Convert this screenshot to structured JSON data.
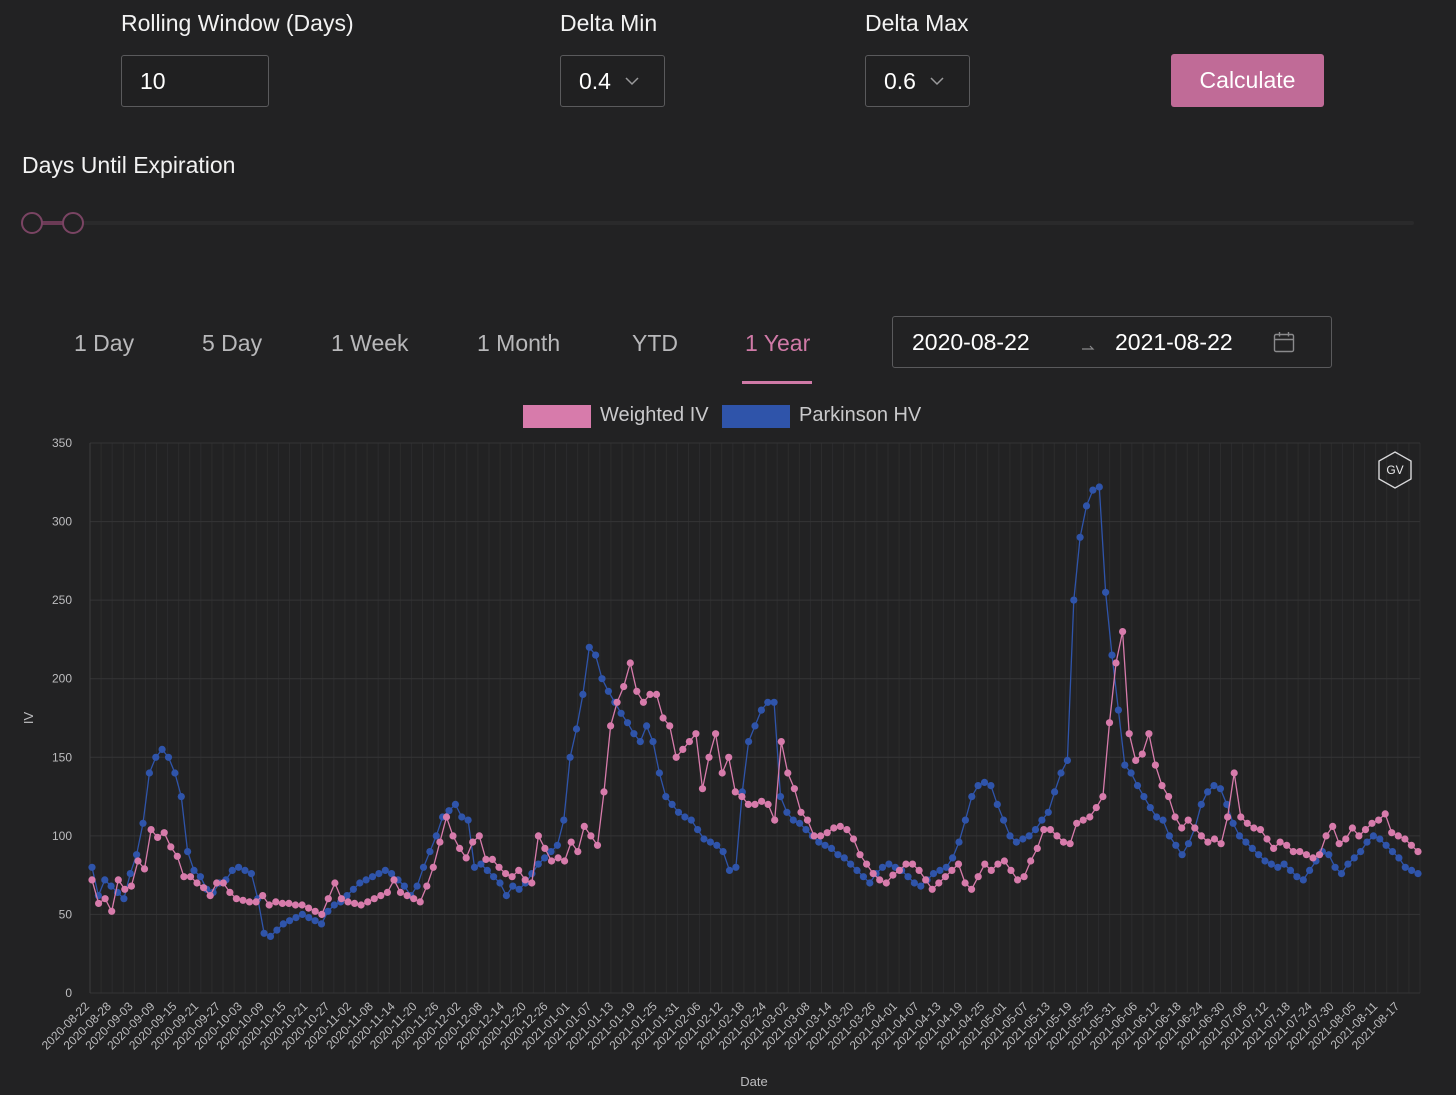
{
  "controls": {
    "rolling_window": {
      "label": "Rolling Window (Days)",
      "value": "10"
    },
    "delta_min": {
      "label": "Delta Min",
      "value": "0.4"
    },
    "delta_max": {
      "label": "Delta Max",
      "value": "0.6"
    },
    "calculate_label": "Calculate"
  },
  "days_until_expiration": {
    "label": "Days Until Expiration"
  },
  "tabs": [
    {
      "label": "1 Day"
    },
    {
      "label": "5 Day"
    },
    {
      "label": "1 Week"
    },
    {
      "label": "1 Month"
    },
    {
      "label": "YTD"
    },
    {
      "label": "1 Year",
      "active": true
    }
  ],
  "date_range": {
    "start": "2020-08-22",
    "end": "2021-08-22"
  },
  "badge": "GV",
  "colors": {
    "accent": "#c06b97",
    "weighted_iv": "#d77bab",
    "parkinson_hv": "#2f54aa"
  },
  "icons": [
    "chevron-down-icon",
    "calendar-icon",
    "arrow-right-icon",
    "gv-hexagon-icon"
  ],
  "chart_data": {
    "type": "line",
    "xlabel": "Date",
    "ylabel": "IV",
    "ylim": [
      0,
      350
    ],
    "yticks": [
      0,
      50,
      100,
      150,
      200,
      250,
      300,
      350
    ],
    "xticks": [
      "2020-08-22",
      "2020-08-28",
      "2020-09-03",
      "2020-09-09",
      "2020-09-15",
      "2020-09-21",
      "2020-09-27",
      "2020-10-03",
      "2020-10-09",
      "2020-10-15",
      "2020-10-21",
      "2020-10-27",
      "2020-11-02",
      "2020-11-08",
      "2020-11-14",
      "2020-11-20",
      "2020-11-26",
      "2020-12-02",
      "2020-12-08",
      "2020-12-14",
      "2020-12-20",
      "2020-12-26",
      "2021-01-01",
      "2021-01-07",
      "2021-01-13",
      "2021-01-19",
      "2021-01-25",
      "2021-01-31",
      "2021-02-06",
      "2021-02-12",
      "2021-02-18",
      "2021-02-24",
      "2021-03-02",
      "2021-03-08",
      "2021-03-14",
      "2021-03-20",
      "2021-03-26",
      "2021-04-01",
      "2021-04-07",
      "2021-04-13",
      "2021-04-19",
      "2021-04-25",
      "2021-05-01",
      "2021-05-07",
      "2021-05-13",
      "2021-05-19",
      "2021-05-25",
      "2021-05-31",
      "2021-06-06",
      "2021-06-12",
      "2021-06-18",
      "2021-06-24",
      "2021-06-30",
      "2021-07-06",
      "2021-07-12",
      "2021-07-18",
      "2021-07-24",
      "2021-07-30",
      "2021-08-05",
      "2021-08-11",
      "2021-08-17"
    ],
    "grid": true,
    "legend": "top-center",
    "series": [
      {
        "name": "Weighted IV",
        "values": [
          72,
          57,
          60,
          52,
          72,
          66,
          68,
          84,
          79,
          104,
          99,
          102,
          93,
          87,
          74,
          74,
          70,
          67,
          62,
          70,
          70,
          64,
          60,
          59,
          58,
          58,
          62,
          56,
          58,
          57,
          57,
          56,
          56,
          54,
          52,
          50,
          60,
          70,
          60,
          58,
          57,
          56,
          58,
          60,
          62,
          64,
          72,
          64,
          62,
          60,
          58,
          68,
          80,
          96,
          112,
          100,
          92,
          86,
          96,
          100,
          85,
          85,
          80,
          76,
          74,
          78,
          72,
          70,
          100,
          92,
          84,
          86,
          84,
          96,
          90,
          106,
          100,
          94,
          128,
          170,
          185,
          195,
          210,
          192,
          185,
          190,
          190,
          175,
          170,
          150,
          155,
          160,
          165,
          130,
          150,
          165,
          140,
          150,
          128,
          125,
          120,
          120,
          122,
          120,
          110,
          160,
          140,
          130,
          115,
          110,
          100,
          100,
          102,
          105,
          106,
          104,
          98,
          88,
          82,
          76,
          72,
          70,
          75,
          78,
          82,
          82,
          78,
          72,
          66,
          70,
          74,
          78,
          82,
          70,
          66,
          74,
          82,
          78,
          82,
          84,
          78,
          72,
          74,
          84,
          92,
          104,
          104,
          100,
          96,
          95,
          108,
          110,
          112,
          118,
          125,
          172,
          210,
          230,
          165,
          148,
          152,
          165,
          145,
          132,
          125,
          112,
          105,
          110,
          105,
          100,
          96,
          98,
          95,
          112,
          140,
          112,
          108,
          105,
          104,
          98,
          92,
          96,
          94,
          90,
          90,
          88,
          86,
          88,
          100,
          106,
          95,
          98,
          105,
          100,
          104,
          108,
          110,
          114,
          102,
          100,
          98,
          94,
          90
        ]
      },
      {
        "name": "Parkinson HV",
        "values": [
          80,
          62,
          72,
          68,
          64,
          60,
          76,
          88,
          108,
          140,
          150,
          155,
          150,
          140,
          125,
          90,
          78,
          74,
          66,
          64,
          70,
          72,
          78,
          80,
          78,
          76,
          60,
          38,
          36,
          40,
          44,
          46,
          48,
          50,
          48,
          46,
          44,
          52,
          56,
          58,
          62,
          66,
          70,
          72,
          74,
          76,
          78,
          76,
          72,
          68,
          62,
          68,
          80,
          90,
          100,
          112,
          116,
          120,
          112,
          110,
          80,
          82,
          78,
          74,
          70,
          62,
          68,
          66,
          70,
          76,
          82,
          86,
          90,
          94,
          110,
          150,
          168,
          190,
          220,
          215,
          200,
          192,
          185,
          178,
          172,
          165,
          160,
          170,
          160,
          140,
          125,
          120,
          115,
          112,
          110,
          104,
          98,
          96,
          94,
          90,
          78,
          80,
          128,
          160,
          170,
          180,
          185,
          185,
          125,
          115,
          110,
          108,
          104,
          100,
          96,
          94,
          92,
          88,
          86,
          82,
          78,
          74,
          70,
          76,
          80,
          82,
          80,
          78,
          74,
          70,
          68,
          72,
          76,
          78,
          80,
          86,
          96,
          110,
          125,
          132,
          134,
          132,
          120,
          110,
          100,
          96,
          98,
          100,
          104,
          110,
          115,
          128,
          140,
          148,
          250,
          290,
          310,
          320,
          322,
          255,
          215,
          180,
          145,
          140,
          132,
          125,
          118,
          112,
          110,
          100,
          94,
          88,
          95,
          105,
          120,
          128,
          132,
          130,
          120,
          108,
          100,
          96,
          92,
          88,
          84,
          82,
          80,
          82,
          78,
          74,
          72,
          78,
          84,
          90,
          88,
          80,
          76,
          82,
          86,
          90,
          96,
          100,
          98,
          94,
          90,
          86,
          80,
          78,
          76
        ]
      }
    ]
  }
}
